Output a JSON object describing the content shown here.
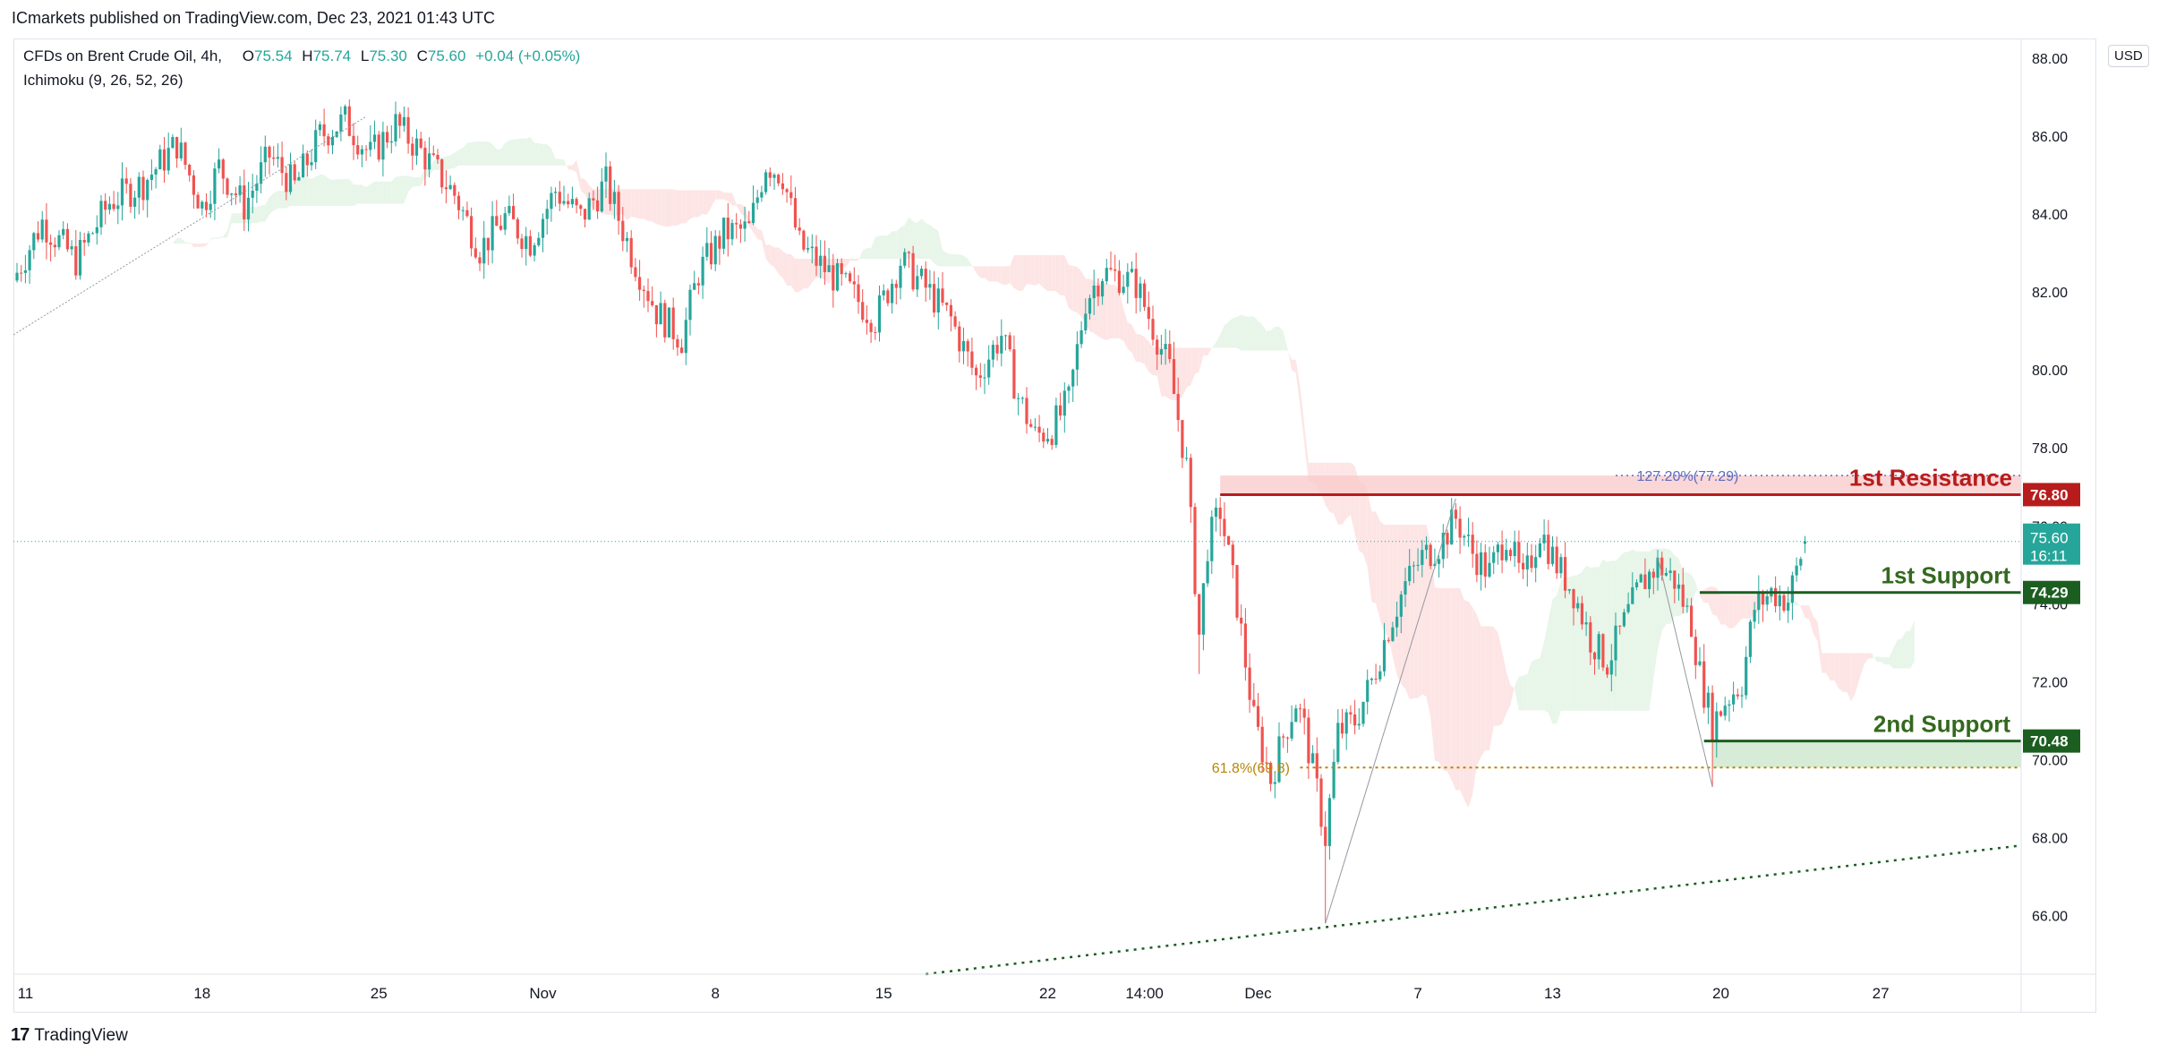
{
  "header": {
    "published": "ICmarkets published on TradingView.com, Dec 23, 2021 01:43 UTC"
  },
  "legend": {
    "symbol": "CFDs on Brent Crude Oil, 4h,",
    "o_label": "O",
    "o": "75.54",
    "h_label": "H",
    "h": "75.74",
    "l_label": "L",
    "l": "75.30",
    "c_label": "C",
    "c": "75.60",
    "change": "+0.04 (+0.05%)",
    "indicator": "Ichimoku (9, 26, 52, 26)"
  },
  "currency": "USD",
  "footer": {
    "brand": "TradingView"
  },
  "colors": {
    "up": "#26a69a",
    "down": "#ef5350",
    "resistance": "#b71c1c",
    "support": "#1b5e20",
    "cloud_bull": "#e8f5e9",
    "cloud_bear": "#fde5e5",
    "fib": "#b8860b"
  },
  "chart_data": {
    "type": "candlestick",
    "y_axis": {
      "min": 64.5,
      "max": 88.5,
      "ticks": [
        66,
        68,
        70,
        72,
        74,
        76,
        78,
        80,
        82,
        84,
        86,
        88
      ],
      "tick_labels": [
        "66.00",
        "68.00",
        "70.00",
        "72.00",
        "74.00",
        "76.00",
        "78.00",
        "80.00",
        "82.00",
        "84.00",
        "86.00",
        "88.00"
      ]
    },
    "x_axis": {
      "ticks": [
        {
          "label": "11",
          "i": 2
        },
        {
          "label": "18",
          "i": 44
        },
        {
          "label": "25",
          "i": 86
        },
        {
          "label": "Nov",
          "i": 125
        },
        {
          "label": "8",
          "i": 166
        },
        {
          "label": "15",
          "i": 206
        },
        {
          "label": "22",
          "i": 245
        },
        {
          "label": "14:00",
          "i": 268
        },
        {
          "label": "Dec",
          "i": 295
        },
        {
          "label": "7",
          "i": 333
        },
        {
          "label": "13",
          "i": 365
        },
        {
          "label": "20",
          "i": 405
        },
        {
          "label": "27",
          "i": 443
        }
      ]
    },
    "anchors": [
      [
        0,
        82.5
      ],
      [
        6,
        83.8
      ],
      [
        14,
        82.8
      ],
      [
        22,
        84.3
      ],
      [
        30,
        84.8
      ],
      [
        38,
        85.8
      ],
      [
        44,
        84.2
      ],
      [
        48,
        85.2
      ],
      [
        54,
        84.2
      ],
      [
        60,
        85.5
      ],
      [
        66,
        84.7
      ],
      [
        72,
        86.0
      ],
      [
        78,
        86.4
      ],
      [
        84,
        85.5
      ],
      [
        90,
        86.3
      ],
      [
        96,
        85.6
      ],
      [
        104,
        84.5
      ],
      [
        110,
        83.1
      ],
      [
        116,
        83.9
      ],
      [
        122,
        83.3
      ],
      [
        128,
        84.6
      ],
      [
        134,
        83.9
      ],
      [
        140,
        84.8
      ],
      [
        146,
        83.0
      ],
      [
        152,
        81.5
      ],
      [
        158,
        80.8
      ],
      [
        162,
        82.5
      ],
      [
        168,
        83.5
      ],
      [
        174,
        83.6
      ],
      [
        178,
        85.3
      ],
      [
        182,
        85.0
      ],
      [
        186,
        83.2
      ],
      [
        192,
        82.6
      ],
      [
        198,
        82.0
      ],
      [
        204,
        81.3
      ],
      [
        210,
        82.8
      ],
      [
        216,
        82.1
      ],
      [
        222,
        81.3
      ],
      [
        228,
        79.8
      ],
      [
        234,
        80.9
      ],
      [
        238,
        79.3
      ],
      [
        242,
        78.3
      ],
      [
        246,
        78.5
      ],
      [
        250,
        79.2
      ],
      [
        254,
        81.8
      ],
      [
        258,
        82.5
      ],
      [
        262,
        82.4
      ],
      [
        266,
        82.2
      ],
      [
        270,
        81.1
      ],
      [
        274,
        80.0
      ],
      [
        278,
        77.5
      ],
      [
        281,
        73.2
      ],
      [
        283,
        75.5
      ],
      [
        286,
        76.4
      ],
      [
        290,
        74.0
      ],
      [
        294,
        71.0
      ],
      [
        298,
        69.5
      ],
      [
        301,
        70.6
      ],
      [
        304,
        71.5
      ],
      [
        306,
        70.8
      ],
      [
        309,
        69.2
      ],
      [
        311,
        68.0
      ],
      [
        314,
        70.7
      ],
      [
        318,
        71.0
      ],
      [
        322,
        72.0
      ],
      [
        326,
        73.4
      ],
      [
        330,
        74.5
      ],
      [
        334,
        75.2
      ],
      [
        338,
        75.5
      ],
      [
        342,
        76.2
      ],
      [
        346,
        75.3
      ],
      [
        350,
        74.8
      ],
      [
        354,
        75.8
      ],
      [
        358,
        74.5
      ],
      [
        362,
        75.9
      ],
      [
        366,
        75.0
      ],
      [
        370,
        74.3
      ],
      [
        374,
        73.1
      ],
      [
        378,
        72.5
      ],
      [
        382,
        73.5
      ],
      [
        386,
        74.5
      ],
      [
        390,
        75.0
      ],
      [
        394,
        74.6
      ],
      [
        398,
        73.5
      ],
      [
        400,
        72.2
      ],
      [
        403,
        70.9
      ],
      [
        406,
        71.5
      ],
      [
        410,
        72.0
      ],
      [
        413,
        73.9
      ],
      [
        417,
        74.3
      ],
      [
        421,
        74.1
      ],
      [
        425,
        75.6
      ]
    ],
    "last_index": 425,
    "lines": {
      "resistance_1": {
        "label": "1st Resistance",
        "value": 76.8,
        "value_label": "76.80"
      },
      "support_1": {
        "label": "1st Support",
        "value": 74.29,
        "value_label": "74.29"
      },
      "support_2": {
        "label": "2nd Support",
        "value": 70.48,
        "value_label": "70.48"
      },
      "last_price": {
        "value": 75.6,
        "value_label": "75.60",
        "countdown": "16:11"
      },
      "fib_127": {
        "label": "127.20%(77.29)",
        "value": 77.29
      },
      "fib_618": {
        "label": "61.8%(69.8)",
        "value": 69.8
      },
      "trendline_lower": {
        "from": {
          "i": 200,
          "y": 64.5
        },
        "to": {
          "i": 425,
          "y": 67.8
        }
      }
    }
  }
}
